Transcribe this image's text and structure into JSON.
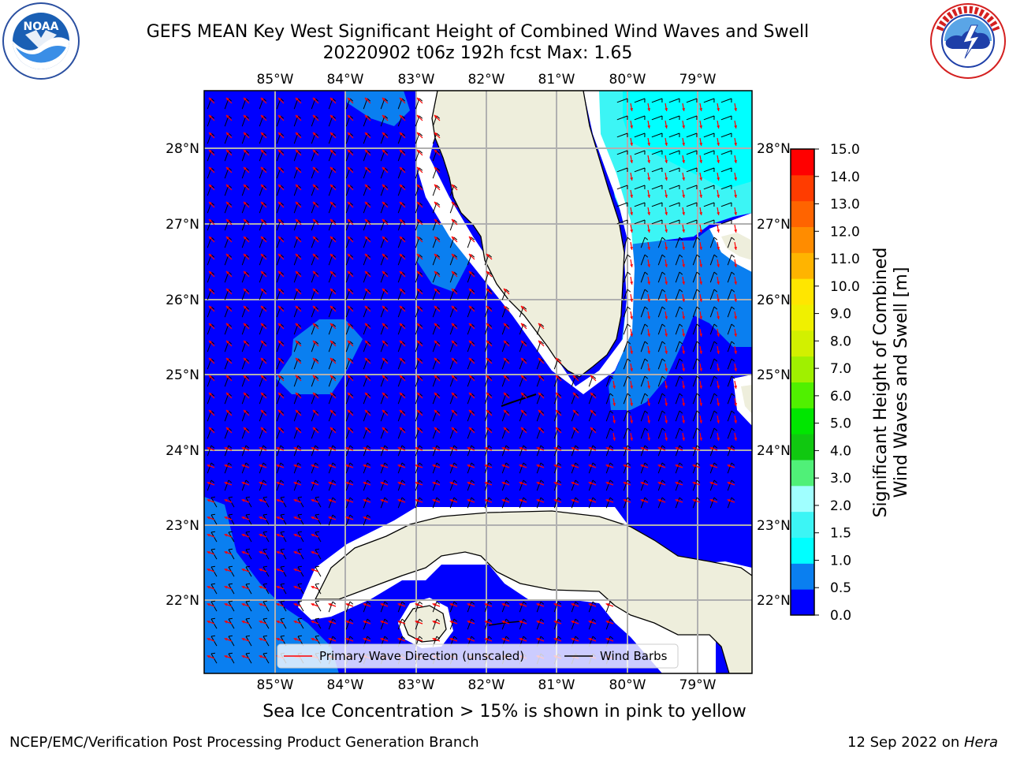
{
  "header": {
    "title": "GEFS MEAN Key West Significant Height of Combined Wind Waves and Swell",
    "subtitle": "20220902 t06z 192h fcst   Max: 1.65"
  },
  "logos": {
    "noaa": {
      "text": "NOAA",
      "ring_text": "NATIONAL OCEANIC AND ATMOSPHERIC ADMINISTRATION · U.S. DEPARTMENT OF COMMERCE"
    },
    "nws": {
      "ring_text": "NATIONAL WEATHER SERVICE"
    }
  },
  "map": {
    "lon_labels": [
      "85°W",
      "84°W",
      "83°W",
      "82°W",
      "81°W",
      "80°W",
      "79°W"
    ],
    "lat_labels": [
      "28°N",
      "27°N",
      "26°N",
      "25°N",
      "24°N",
      "23°N",
      "22°N"
    ],
    "legend": {
      "wave_direction": "Primary Wave Direction (unscaled)",
      "wind_barbs": "Wind Barbs"
    },
    "colors": {
      "ocean_low": "#0000ff",
      "ocean_mid": "#0a7ff0",
      "ocean_high": "#00ffff",
      "ocean_high2": "#3cf5f5",
      "land": "#eeeedc",
      "grid": "#b0b0b0",
      "arrow": "#ff0000"
    }
  },
  "colorbar": {
    "label_line1": "Significant Height of Combined",
    "label_line2": "Wind Waves and Swell [m]",
    "ticks": [
      "15.0",
      "14.0",
      "13.0",
      "12.0",
      "11.0",
      "10.0",
      "9.0",
      "8.0",
      "7.0",
      "6.0",
      "5.0",
      "4.0",
      "3.0",
      "2.0",
      "1.5",
      "1.0",
      "0.5",
      "0.0"
    ],
    "bands": [
      "#0000ff",
      "#0a7ff0",
      "#00ffff",
      "#3cf5f5",
      "#a0ffff",
      "#50f078",
      "#10c810",
      "#00e600",
      "#50f000",
      "#a0f000",
      "#d2f000",
      "#f0f000",
      "#ffe600",
      "#ffb400",
      "#ff8c00",
      "#ff6400",
      "#ff3c00",
      "#ff0000"
    ]
  },
  "ice_note": "Sea Ice Concentration > 15% is shown in pink to yellow",
  "footer": {
    "left": "NCEP/EMC/Verification Post Processing Product Generation Branch",
    "right_prefix": "12 Sep 2022 on ",
    "right_italic": "Hera"
  }
}
